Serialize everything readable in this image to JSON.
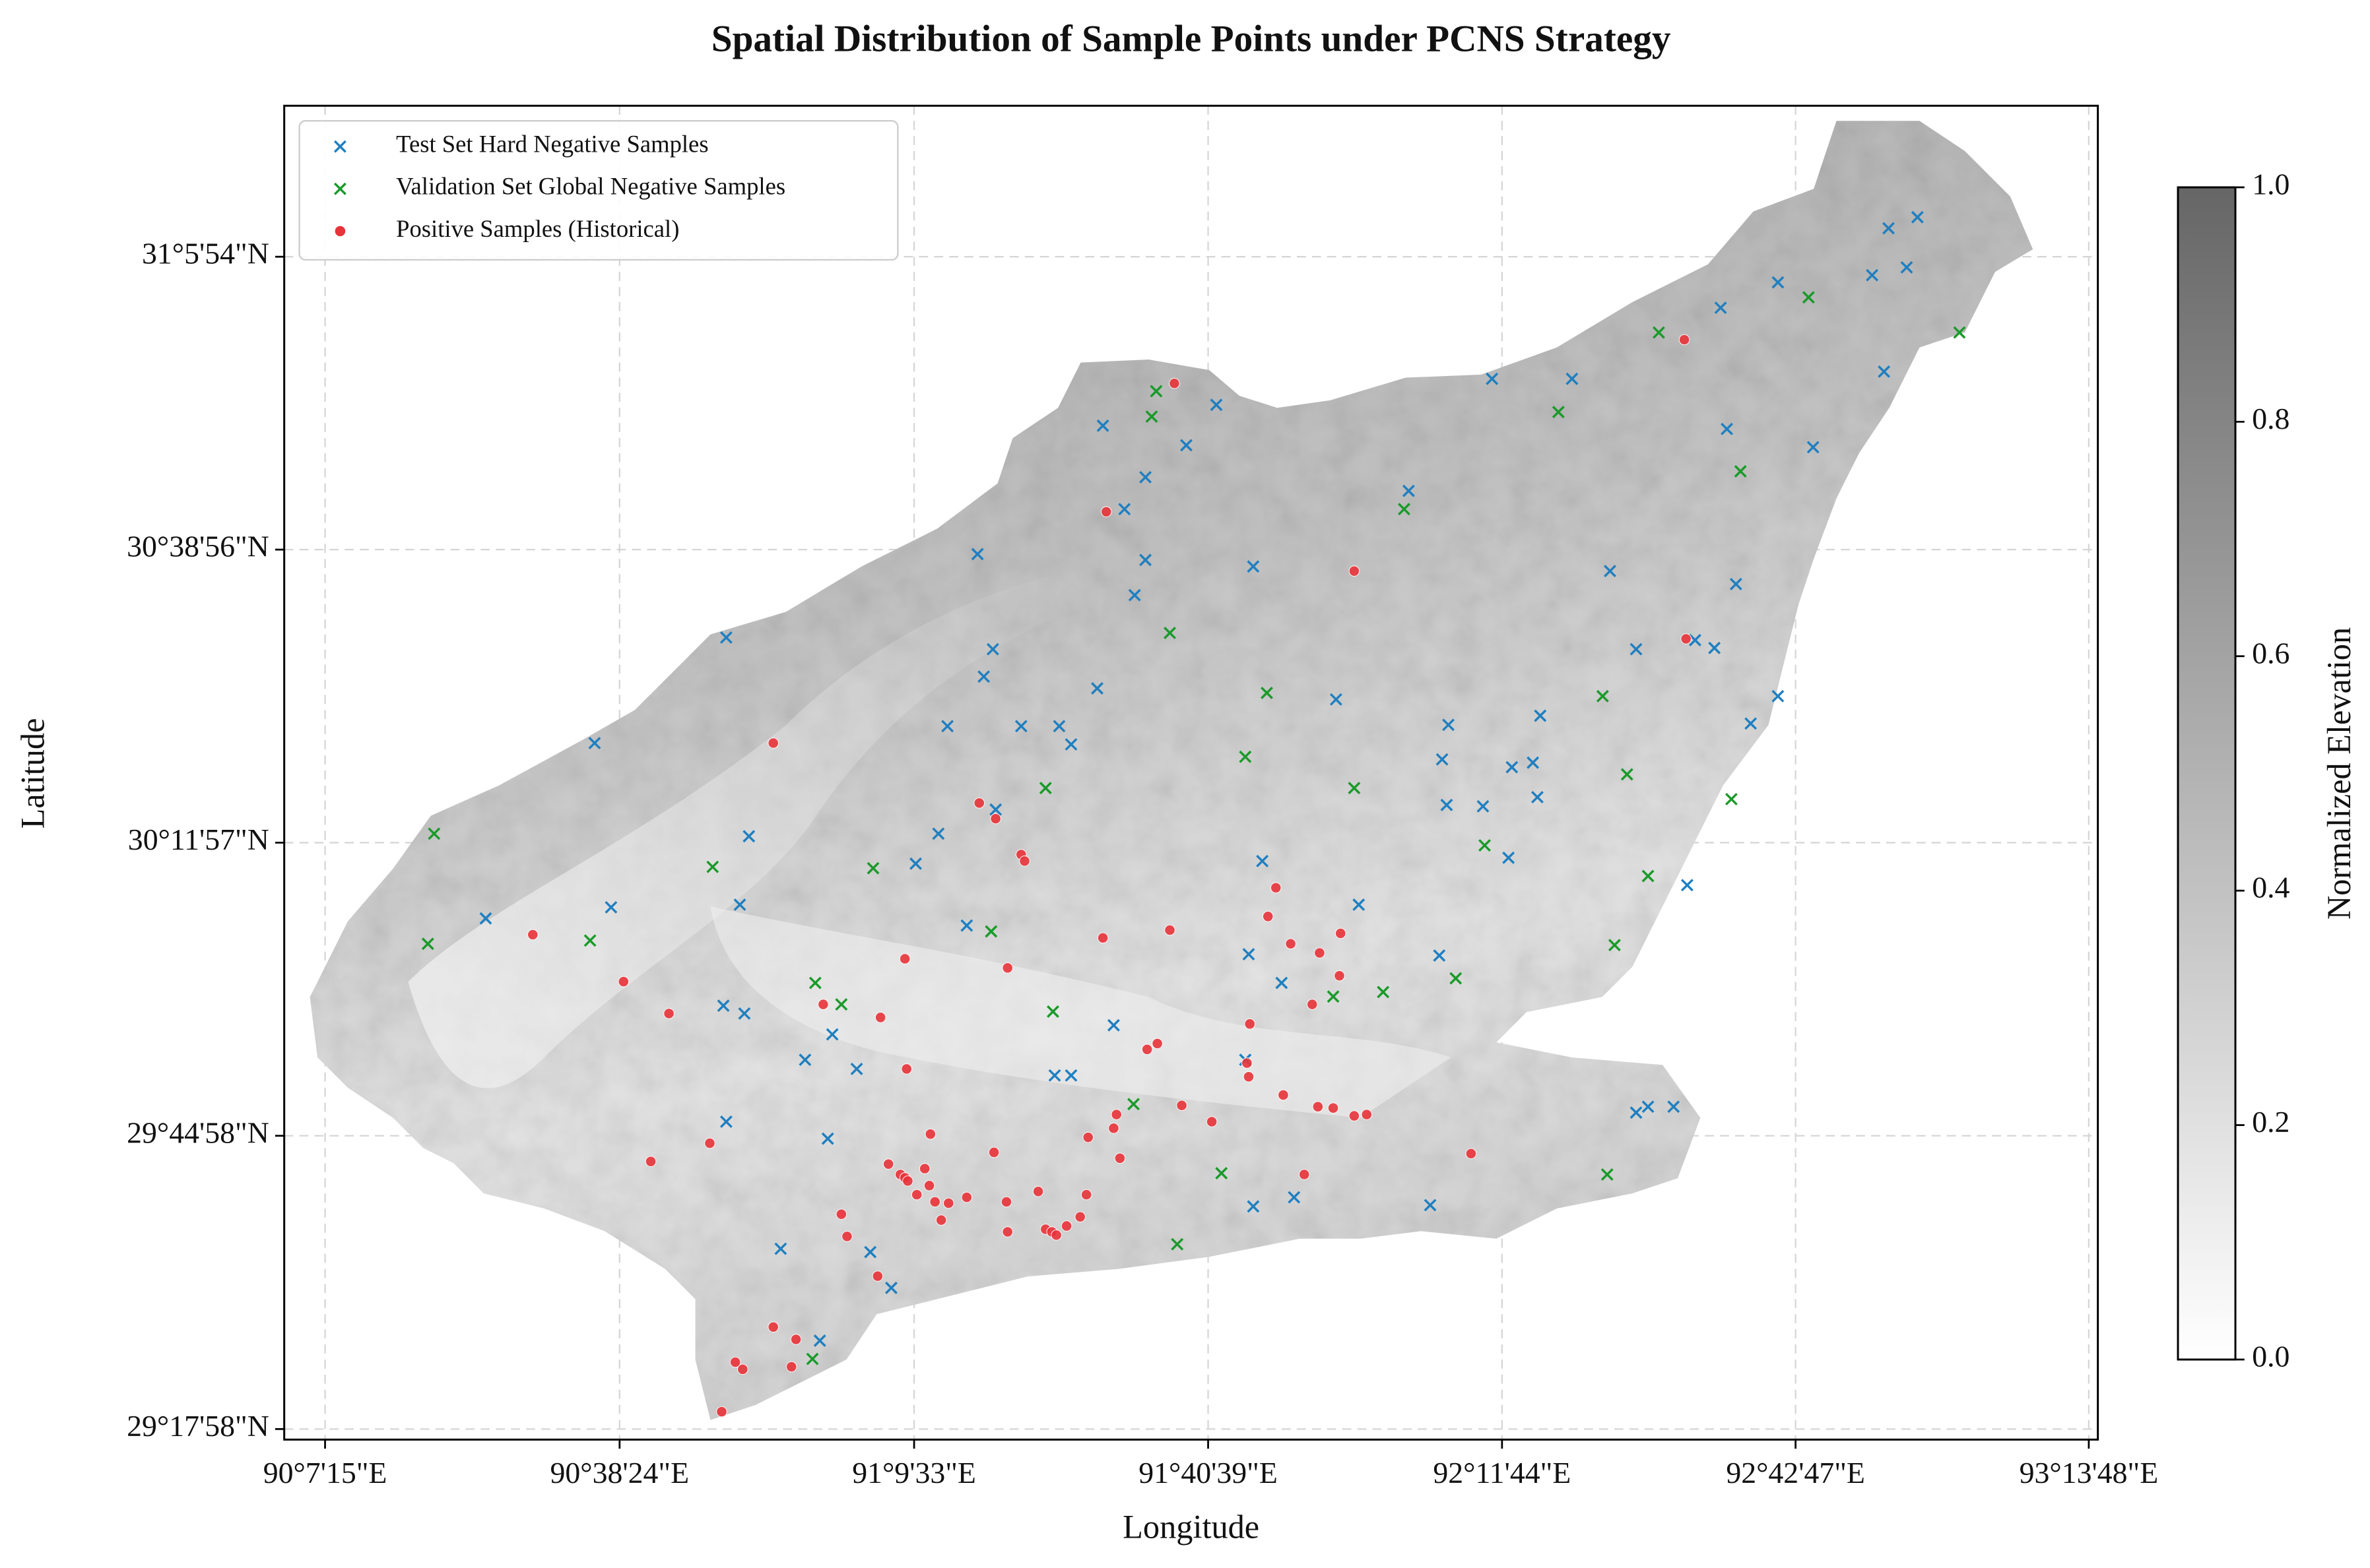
{
  "chart_data": {
    "type": "scatter",
    "title": "Spatial Distribution of Sample Points under PCNS Strategy",
    "x_label": "Longitude",
    "y_label": "Latitude",
    "xlim": [
      90.0488,
      93.246
    ],
    "ylim": [
      29.2832,
      31.33
    ],
    "xticks": [
      {
        "value": 90.1208,
        "label": "90°7'15\"E"
      },
      {
        "value": 90.64,
        "label": "90°38'24\"E"
      },
      {
        "value": 91.1592,
        "label": "91°9'33\"E"
      },
      {
        "value": 91.6775,
        "label": "91°40'39\"E"
      },
      {
        "value": 92.1956,
        "label": "92°11'44\"E"
      },
      {
        "value": 92.7131,
        "label": "92°42'47\"E"
      },
      {
        "value": 93.23,
        "label": "93°13'48\"E"
      }
    ],
    "yticks": [
      {
        "value": 29.2994,
        "label": "29°17'58\"N"
      },
      {
        "value": 29.7494,
        "label": "29°44'58\"N"
      },
      {
        "value": 30.1992,
        "label": "30°11'57\"N"
      },
      {
        "value": 30.6489,
        "label": "30°38'56\"N"
      },
      {
        "value": 31.0983,
        "label": "31°5'54\"N"
      }
    ],
    "grid": true,
    "legend": "upper left",
    "colorbar": {
      "label": "Normalized Elevation",
      "lim": [
        0,
        1
      ],
      "colors": [
        "#ffffff",
        "#666666"
      ],
      "ticks": [
        {
          "value": 0,
          "label": "0.0"
        },
        {
          "value": 0.2,
          "label": "0.2"
        },
        {
          "value": 0.4,
          "label": "0.4"
        },
        {
          "value": 0.6,
          "label": "0.6"
        },
        {
          "value": 0.8,
          "label": "0.8"
        },
        {
          "value": 1,
          "label": "1.0"
        }
      ]
    },
    "series": [
      {
        "name": "Test Set Hard Negative Samples",
        "color": "#1f7fc0",
        "marker": "x",
        "x": [
          92.928,
          92.877,
          92.909,
          92.848,
          92.682,
          92.581,
          92.869,
          92.319,
          92.178,
          91.692,
          91.492,
          91.639,
          92.592,
          92.744,
          91.567,
          92.031,
          91.53,
          91.271,
          91.567,
          91.757,
          92.386,
          91.548,
          92.608,
          92.536,
          92.57,
          90.828,
          91.298,
          92.432,
          91.282,
          91.482,
          91.903,
          92.682,
          92.101,
          92.263,
          91.218,
          91.348,
          91.415,
          91.436,
          90.596,
          92.634,
          92.09,
          92.213,
          92.25,
          91.303,
          92.258,
          92.098,
          92.162,
          90.868,
          91.202,
          91.162,
          91.773,
          92.207,
          90.852,
          90.404,
          90.625,
          91.252,
          91.943,
          92.522,
          91.749,
          92.085,
          91.807,
          90.823,
          90.86,
          91.511,
          91.015,
          90.967,
          91.058,
          91.407,
          91.436,
          91.743,
          90.828,
          91.007,
          92.432,
          92.453,
          92.498,
          91.757,
          91.829,
          92.069,
          90.924,
          91.082,
          91.119,
          90.993
        ],
        "y": [
          31.159,
          31.142,
          31.082,
          31.07,
          31.059,
          31.02,
          30.922,
          30.911,
          30.911,
          30.871,
          30.839,
          30.809,
          30.834,
          30.806,
          30.76,
          30.739,
          30.711,
          30.642,
          30.633,
          30.623,
          30.616,
          30.579,
          30.596,
          30.51,
          30.498,
          30.514,
          30.496,
          30.496,
          30.454,
          30.436,
          30.419,
          30.424,
          30.38,
          30.394,
          30.378,
          30.378,
          30.378,
          30.35,
          30.352,
          30.382,
          30.327,
          30.315,
          30.322,
          30.25,
          30.269,
          30.257,
          30.255,
          30.209,
          30.213,
          30.167,
          30.171,
          30.176,
          30.104,
          30.083,
          30.1,
          30.072,
          30.104,
          30.134,
          30.028,
          30.026,
          29.984,
          29.949,
          29.937,
          29.919,
          29.905,
          29.866,
          29.852,
          29.842,
          29.842,
          29.866,
          29.771,
          29.745,
          29.785,
          29.794,
          29.794,
          29.641,
          29.655,
          29.643,
          29.576,
          29.571,
          29.516,
          29.435
        ]
      },
      {
        "name": "Validation Set Global Negative Samples",
        "color": "#1a9a2a",
        "marker": "x",
        "x": [
          92.472,
          92.736,
          93.002,
          91.586,
          91.578,
          92.295,
          92.616,
          92.023,
          91.61,
          91.781,
          92.373,
          91.743,
          92.416,
          91.391,
          91.935,
          92.6,
          90.313,
          90.804,
          91.087,
          92.165,
          92.453,
          90.588,
          90.302,
          91.295,
          92.394,
          92.114,
          90.985,
          91.031,
          91.898,
          91.986,
          91.404,
          91.546,
          91.701,
          92.381,
          91.623,
          90.98
        ],
        "y": [
          30.982,
          31.036,
          30.982,
          30.892,
          30.853,
          30.86,
          30.769,
          30.711,
          30.521,
          30.429,
          30.424,
          30.331,
          30.304,
          30.283,
          30.283,
          30.266,
          30.213,
          30.162,
          30.16,
          30.195,
          30.148,
          30.049,
          30.044,
          30.063,
          30.042,
          29.991,
          29.984,
          29.951,
          29.963,
          29.97,
          29.94,
          29.798,
          29.692,
          29.69,
          29.583,
          29.407
        ]
      },
      {
        "name": "Positive Samples (Historical)",
        "color": "#e8333a",
        "marker": "o",
        "x": [
          91.618,
          92.517,
          91.498,
          91.935,
          92.52,
          90.911,
          91.274,
          91.303,
          91.348,
          91.354,
          90.487,
          91.492,
          91.61,
          91.797,
          91.783,
          91.143,
          91.324,
          90.647,
          91.823,
          91.874,
          91.911,
          91.909,
          90.727,
          90.999,
          91.1,
          91.861,
          91.751,
          91.588,
          91.57,
          91.146,
          91.746,
          91.749,
          91.81,
          91.631,
          91.516,
          91.511,
          91.871,
          91.898,
          91.935,
          91.957,
          91.188,
          90.799,
          91.684,
          91.3,
          91.466,
          91.522,
          90.695,
          91.114,
          91.135,
          91.143,
          91.148,
          91.178,
          91.186,
          91.164,
          91.196,
          91.22,
          91.252,
          91.378,
          91.463,
          91.847,
          92.141,
          91.031,
          91.207,
          91.322,
          91.428,
          91.452,
          91.391,
          91.402,
          91.41,
          91.041,
          91.324,
          91.095,
          90.911,
          90.951,
          90.844,
          90.857,
          90.943,
          90.82
        ],
        "y": [
          30.904,
          30.971,
          30.707,
          30.616,
          30.512,
          30.352,
          30.26,
          30.236,
          30.181,
          30.171,
          30.058,
          30.053,
          30.065,
          30.13,
          30.086,
          30.021,
          30.007,
          29.986,
          30.044,
          30.03,
          30.06,
          29.995,
          29.937,
          29.951,
          29.931,
          29.951,
          29.921,
          29.891,
          29.882,
          29.852,
          29.861,
          29.84,
          29.812,
          29.796,
          29.782,
          29.761,
          29.794,
          29.792,
          29.78,
          29.782,
          29.752,
          29.738,
          29.771,
          29.724,
          29.747,
          29.715,
          29.71,
          29.706,
          29.69,
          29.685,
          29.68,
          29.699,
          29.673,
          29.659,
          29.648,
          29.646,
          29.655,
          29.664,
          29.659,
          29.69,
          29.722,
          29.629,
          29.62,
          29.648,
          29.611,
          29.625,
          29.606,
          29.602,
          29.597,
          29.595,
          29.602,
          29.534,
          29.456,
          29.437,
          29.402,
          29.391,
          29.395,
          29.326
        ]
      }
    ]
  }
}
